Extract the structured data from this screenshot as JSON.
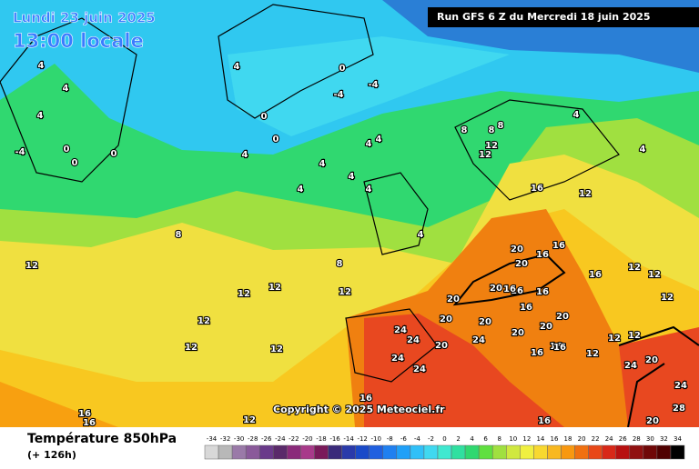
{
  "header": {
    "date": "Lundi 23 juin 2025",
    "time": "13:00 locale",
    "run": "Run GFS 6 Z du Mercredi 18 juin 2025"
  },
  "copyright": "Copyright © 2025 Meteociel.fr",
  "footer": {
    "title": "Température 850hPa",
    "subtitle": "(+ 126h)"
  },
  "legend": {
    "ticks": [
      -34,
      -32,
      -30,
      -28,
      -26,
      -24,
      -22,
      -20,
      -18,
      -16,
      -14,
      -12,
      -10,
      -8,
      -6,
      -4,
      -2,
      0,
      2,
      4,
      6,
      8,
      10,
      12,
      14,
      16,
      18,
      20,
      22,
      24,
      26,
      28,
      30,
      32,
      34
    ],
    "colors": [
      "#d8d8d8",
      "#b8b8b8",
      "#9a7aa8",
      "#8a5a9a",
      "#6a3a8a",
      "#5a2a6a",
      "#8a2a7a",
      "#a83a8a",
      "#7a1a5a",
      "#3a2a7a",
      "#2a3aaa",
      "#1a4ac8",
      "#2060e0",
      "#2080f0",
      "#20a0f8",
      "#30c0f8",
      "#40d8f0",
      "#40e8d0",
      "#30e0a0",
      "#30d870",
      "#60e040",
      "#a0e040",
      "#d0e840",
      "#f0f040",
      "#f8d830",
      "#f8b820",
      "#f89810",
      "#f07010",
      "#e84818",
      "#d82818",
      "#b81010",
      "#901010",
      "#700808",
      "#500000",
      "#000000"
    ]
  },
  "contour_labels": [
    4,
    4,
    4,
    -4,
    0,
    0,
    0,
    4,
    0,
    -4,
    -4,
    0,
    0,
    4,
    4,
    4,
    4,
    4,
    4,
    4,
    4,
    8,
    8,
    8,
    12,
    12,
    16,
    12,
    4,
    4,
    8,
    8,
    12,
    12,
    12,
    12,
    12,
    12,
    12,
    20,
    16,
    20,
    16,
    16,
    12,
    12,
    12,
    20,
    20,
    16,
    16,
    20,
    20,
    20,
    20,
    24,
    24,
    20,
    24,
    24,
    24,
    16,
    16,
    20,
    12,
    12,
    12,
    24,
    20,
    24,
    28,
    20,
    16,
    16,
    16,
    16,
    12,
    16,
    16,
    16
  ]
}
